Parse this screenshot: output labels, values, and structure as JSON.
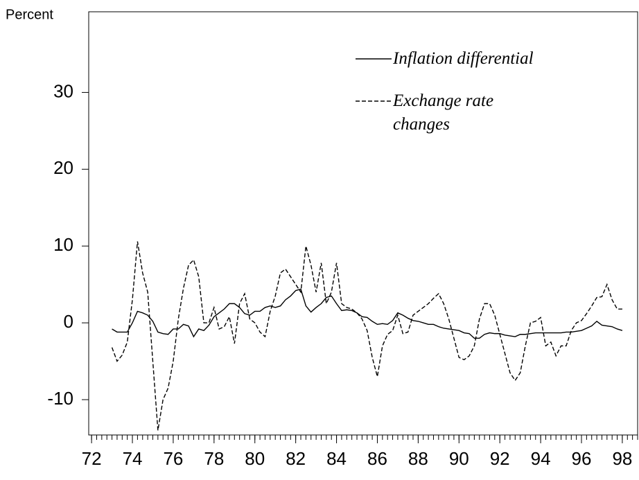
{
  "chart_data": {
    "type": "line",
    "y_label": "Percent",
    "x": [
      73,
      73.25,
      73.5,
      73.75,
      74,
      74.25,
      74.5,
      74.75,
      75,
      75.25,
      75.5,
      75.75,
      76,
      76.25,
      76.5,
      76.75,
      77,
      77.25,
      77.5,
      77.75,
      78,
      78.25,
      78.5,
      78.75,
      79,
      79.25,
      79.5,
      79.75,
      80,
      80.25,
      80.5,
      80.75,
      81,
      81.25,
      81.5,
      81.75,
      82,
      82.25,
      82.5,
      82.75,
      83,
      83.25,
      83.5,
      83.75,
      84,
      84.25,
      84.5,
      84.75,
      85,
      85.25,
      85.5,
      85.75,
      86,
      86.25,
      86.5,
      86.75,
      87,
      87.25,
      87.5,
      87.75,
      88,
      88.25,
      88.5,
      88.75,
      89,
      89.25,
      89.5,
      89.75,
      90,
      90.25,
      90.5,
      90.75,
      91,
      91.25,
      91.5,
      91.75,
      92,
      92.25,
      92.5,
      92.75,
      93,
      93.25,
      93.5,
      93.75,
      94,
      94.25,
      94.5,
      94.75,
      95,
      95.25,
      95.5,
      95.75,
      96,
      96.25,
      96.5,
      96.75,
      97,
      97.25,
      97.5,
      97.75,
      98
    ],
    "series": [
      {
        "name": "Inflation differential",
        "color": "#000000",
        "dash": false,
        "values": [
          -0.8,
          -1.2,
          -1.2,
          -1.2,
          0,
          1.5,
          1.3,
          1.0,
          0.2,
          -1.2,
          -1.4,
          -1.5,
          -0.8,
          -0.8,
          -0.2,
          -0.4,
          -1.8,
          -0.8,
          -1.0,
          -0.3,
          0.8,
          1.3,
          1.8,
          2.5,
          2.5,
          2.0,
          1.2,
          1.0,
          1.5,
          1.5,
          2.0,
          2.2,
          2.0,
          2.2,
          3.0,
          3.5,
          4.2,
          4.4,
          2.2,
          1.4,
          2.0,
          2.5,
          3.3,
          3.5,
          2.5,
          1.6,
          1.7,
          1.6,
          1.3,
          0.8,
          0.7,
          0.2,
          -0.2,
          -0.1,
          -0.2,
          0.3,
          1.3,
          1.0,
          0.6,
          0.3,
          0.2,
          0,
          -0.2,
          -0.2,
          -0.5,
          -0.7,
          -0.8,
          -0.9,
          -1.0,
          -1.3,
          -1.4,
          -2.0,
          -2.0,
          -1.5,
          -1.3,
          -1.4,
          -1.4,
          -1.6,
          -1.7,
          -1.8,
          -1.5,
          -1.5,
          -1.4,
          -1.3,
          -1.3,
          -1.3,
          -1.3,
          -1.3,
          -1.3,
          -1.2,
          -1.2,
          -1.1,
          -1.0,
          -0.7,
          -0.4,
          0.2,
          -0.3,
          -0.4,
          -0.5,
          -0.8,
          -1.0
        ]
      },
      {
        "name": "Exchange rate changes",
        "color": "#000000",
        "dash": true,
        "values": [
          -3.2,
          -5.0,
          -4.2,
          -2.5,
          3.0,
          10.6,
          6.5,
          4.0,
          -5.0,
          -14.0,
          -10.0,
          -8.5,
          -5.0,
          0.5,
          4.5,
          7.5,
          8.2,
          6.0,
          0.0,
          0.0,
          2.0,
          -0.8,
          -0.5,
          0.8,
          -2.7,
          2.5,
          3.8,
          0.5,
          0.0,
          -1.2,
          -1.8,
          1.5,
          3.5,
          6.5,
          7.0,
          6.0,
          5.0,
          4.0,
          10.0,
          7.5,
          4.0,
          7.8,
          2.5,
          4.0,
          7.8,
          2.5,
          2.0,
          1.8,
          1.3,
          0.5,
          -1.0,
          -4.5,
          -7.0,
          -3.0,
          -1.5,
          -1.0,
          1.0,
          -1.4,
          -1.2,
          1.0,
          1.5,
          2.0,
          2.5,
          3.2,
          3.8,
          2.5,
          0.5,
          -2.0,
          -4.5,
          -4.8,
          -4.3,
          -3.0,
          0.5,
          2.5,
          2.5,
          1.0,
          -1.5,
          -4.0,
          -6.5,
          -7.5,
          -6.5,
          -3.0,
          0.0,
          0.2,
          0.7,
          -3.0,
          -2.5,
          -4.3,
          -3.0,
          -3.0,
          -1.0,
          0.0,
          0.3,
          1.2,
          2.2,
          3.3,
          3.4,
          5.0,
          3.0,
          1.8,
          1.8
        ]
      }
    ],
    "xlim": [
      71.86,
      98.75
    ],
    "xticks": [
      72,
      74,
      76,
      78,
      80,
      82,
      84,
      86,
      88,
      90,
      92,
      94,
      96,
      98
    ],
    "ylim": [
      -14.6,
      40.5
    ],
    "yticks": [
      -10,
      0,
      10,
      20,
      30
    ],
    "grid": false,
    "legend": "upper right"
  }
}
